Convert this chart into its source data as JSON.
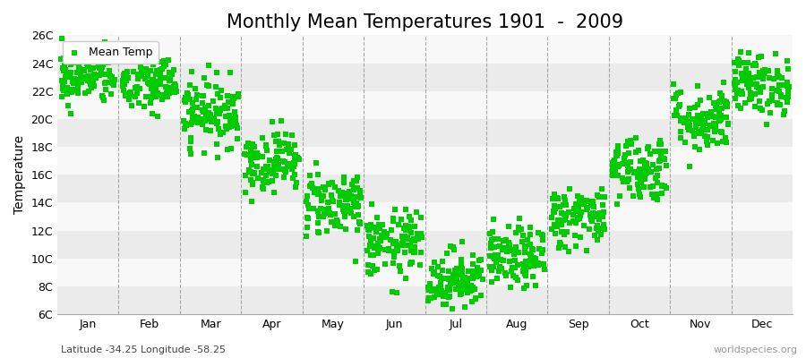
{
  "title": "Monthly Mean Temperatures 1901  -  2009",
  "ylabel": "Temperature",
  "xlabel_bottom": "Latitude -34.25 Longitude -58.25",
  "watermark": "worldspecies.org",
  "months": [
    "Jan",
    "Feb",
    "Mar",
    "Apr",
    "May",
    "Jun",
    "Jul",
    "Aug",
    "Sep",
    "Oct",
    "Nov",
    "Dec"
  ],
  "ylim": [
    6,
    26
  ],
  "yticks": [
    6,
    8,
    10,
    12,
    14,
    16,
    18,
    20,
    22,
    24,
    26
  ],
  "ytick_labels": [
    "6C",
    "8C",
    "10C",
    "12C",
    "14C",
    "16C",
    "18C",
    "20C",
    "22C",
    "24C",
    "26C"
  ],
  "marker_color": "#00cc00",
  "marker_size": 15,
  "bg_color": "#ffffff",
  "band_colors": [
    "#ebebeb",
    "#f8f8f8"
  ],
  "n_years": 109,
  "monthly_means": [
    23.0,
    22.5,
    20.5,
    17.0,
    14.0,
    11.0,
    8.5,
    10.0,
    13.0,
    16.5,
    20.0,
    22.5
  ],
  "monthly_stds": [
    1.0,
    1.1,
    1.2,
    1.1,
    1.2,
    1.2,
    1.1,
    1.1,
    1.1,
    1.2,
    1.2,
    1.1
  ],
  "seed": 42,
  "legend_label": "Mean Temp",
  "title_fontsize": 15,
  "axis_fontsize": 10,
  "tick_fontsize": 9
}
